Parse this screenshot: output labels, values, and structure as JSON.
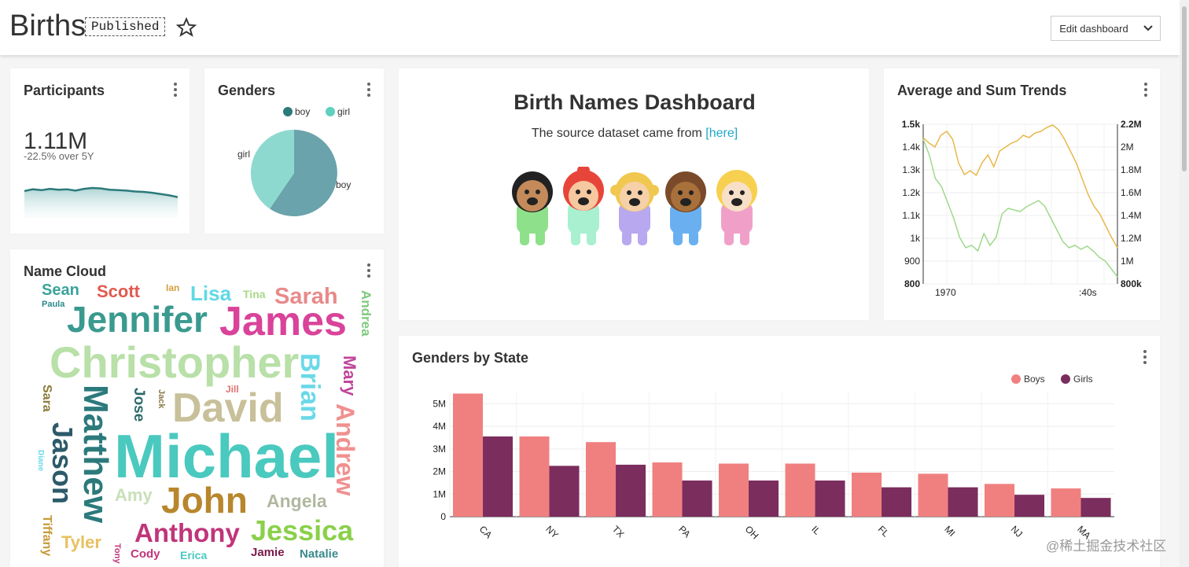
{
  "header": {
    "title": "Births",
    "status_badge": "Published",
    "edit_button": "Edit dashboard"
  },
  "colors": {
    "teal": "#2c7a7b",
    "boy": "#6aa3ab",
    "girl": "#8dd9d0",
    "boys_bar": "#f08080",
    "girls_bar": "#7b2d5e",
    "line1": "#e8b84a",
    "line2": "#9ed98b"
  },
  "participants": {
    "title": "Participants",
    "value": "1.11M",
    "change": "-22.5% over 5Y",
    "sparkline": [
      0.62,
      0.66,
      0.64,
      0.67,
      0.65,
      0.66,
      0.63,
      0.67,
      0.69,
      0.68,
      0.65,
      0.64,
      0.63,
      0.61,
      0.6,
      0.58,
      0.55,
      0.52,
      0.48
    ]
  },
  "genders": {
    "title": "Genders",
    "legend": [
      "boy",
      "girl"
    ],
    "labels": {
      "boy": "boy",
      "girl": "girl"
    }
  },
  "markdown": {
    "heading": "Birth Names Dashboard",
    "text": "The source dataset came from",
    "link": "[here]"
  },
  "trends": {
    "title": "Average and Sum Trends",
    "left_ticks": [
      "1.5k",
      "1.4k",
      "1.3k",
      "1.2k",
      "1.1k",
      "1k",
      "900",
      "800"
    ],
    "right_ticks": [
      "2.2M",
      "2M",
      "1.8M",
      "1.6M",
      "1.4M",
      "1.2M",
      "1M",
      "800k"
    ],
    "x_ticks": [
      "1970",
      ":40s"
    ]
  },
  "namecloud": {
    "title": "Name Cloud",
    "words": [
      {
        "text": "Sean",
        "color": "#3aa39a"
      },
      {
        "text": "Scott",
        "color": "#e05a4f"
      },
      {
        "text": "Ian",
        "color": "#d4a03c"
      },
      {
        "text": "Lisa",
        "color": "#5fd9e6"
      },
      {
        "text": "Tina",
        "color": "#a8d888"
      },
      {
        "text": "Sarah",
        "color": "#e88a8a"
      },
      {
        "text": "Paula",
        "color": "#2c8a8a"
      },
      {
        "text": "Jennifer",
        "color": "#3a9a8f"
      },
      {
        "text": "James",
        "color": "#d9439a"
      },
      {
        "text": "Andrea",
        "color": "#7fc97f"
      },
      {
        "text": "Christopher",
        "color": "#b8e0a8"
      },
      {
        "text": "Brian",
        "color": "#6ad9e8"
      },
      {
        "text": "Mary",
        "color": "#c0459a"
      },
      {
        "text": "Sara",
        "color": "#8a7a3a"
      },
      {
        "text": "Matthew",
        "color": "#2c7a7b"
      },
      {
        "text": "Jose",
        "color": "#2c6a6a"
      },
      {
        "text": "Jack",
        "color": "#8a7a4a"
      },
      {
        "text": "Jill",
        "color": "#e07070"
      },
      {
        "text": "David",
        "color": "#c8c09a"
      },
      {
        "text": "Andrew",
        "color": "#f09090"
      },
      {
        "text": "Jason",
        "color": "#2c5a6a"
      },
      {
        "text": "Diane",
        "color": "#6ad9e8"
      },
      {
        "text": "Michael",
        "color": "#4ac9bf"
      },
      {
        "text": "Amy",
        "color": "#c8e0b8"
      },
      {
        "text": "John",
        "color": "#b8862c"
      },
      {
        "text": "Angela",
        "color": "#b0b8a0"
      },
      {
        "text": "Tiffany",
        "color": "#c89a3a"
      },
      {
        "text": "Tyler",
        "color": "#e8c060"
      },
      {
        "text": "Anthony",
        "color": "#c0357a"
      },
      {
        "text": "Jessica",
        "color": "#8ad04a"
      },
      {
        "text": "Tony",
        "color": "#c0357a"
      },
      {
        "text": "Cody",
        "color": "#c0357a"
      },
      {
        "text": "Erica",
        "color": "#4ac9bf"
      },
      {
        "text": "Jamie",
        "color": "#7a1a4a"
      },
      {
        "text": "Natalie",
        "color": "#3a8a8a"
      }
    ]
  },
  "genders_by_state": {
    "title": "Genders by State"
  },
  "chart_data": {
    "type": "bar",
    "title": "Genders by State",
    "categories": [
      "CA",
      "NY",
      "TX",
      "PA",
      "OH",
      "IL",
      "FL",
      "MI",
      "NJ",
      "MA"
    ],
    "series": [
      {
        "name": "Boys",
        "values": [
          5.45,
          3.55,
          3.3,
          2.4,
          2.35,
          2.35,
          1.95,
          1.9,
          1.45,
          1.25
        ]
      },
      {
        "name": "Girls",
        "values": [
          3.55,
          2.25,
          2.3,
          1.6,
          1.6,
          1.6,
          1.3,
          1.3,
          0.97,
          0.83
        ]
      }
    ],
    "y_ticks": [
      "0",
      "1M",
      "2M",
      "3M",
      "4M",
      "5M"
    ],
    "ylim": [
      0,
      5.5
    ],
    "legend_position": "top-right",
    "grid": true
  },
  "watermark": "@稀土掘金技术社区"
}
